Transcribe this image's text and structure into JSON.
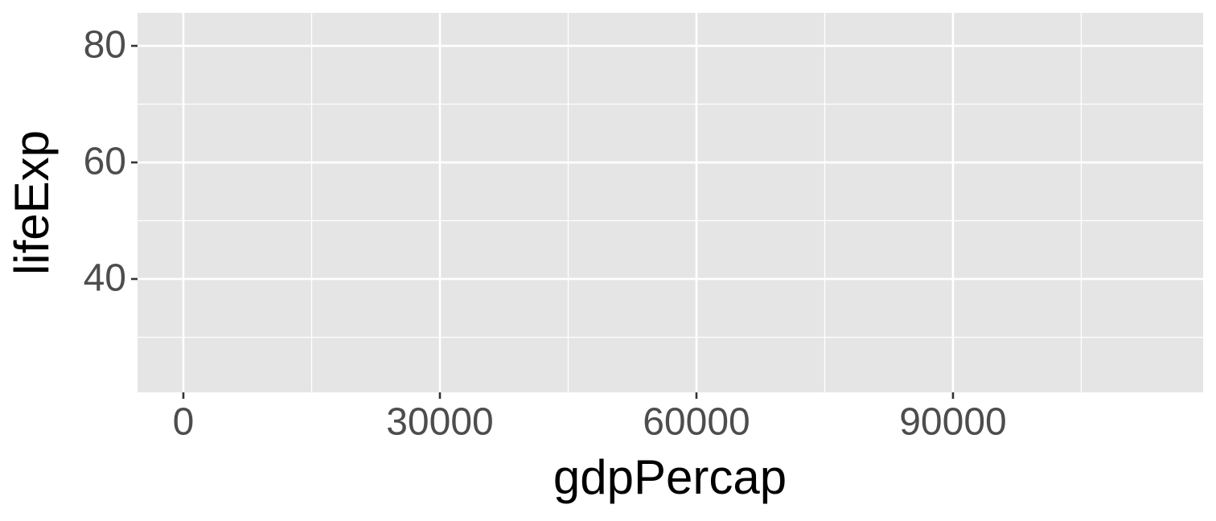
{
  "chart_data": {
    "type": "scatter",
    "x_label": "gdpPercap",
    "y_label": "lifeExp",
    "xlim": [
      -5360,
      119250
    ],
    "ylim": [
      20.55,
      85.66
    ],
    "xticks": [
      0,
      30000,
      60000,
      90000
    ],
    "yticks": [
      40,
      60,
      80
    ],
    "minor_xticks": [
      15000,
      45000,
      75000,
      105000
    ],
    "minor_yticks": [
      30,
      50,
      70
    ],
    "grid": true,
    "panel_color": "#e5e5e5",
    "grid_color": "#ffffff"
  }
}
